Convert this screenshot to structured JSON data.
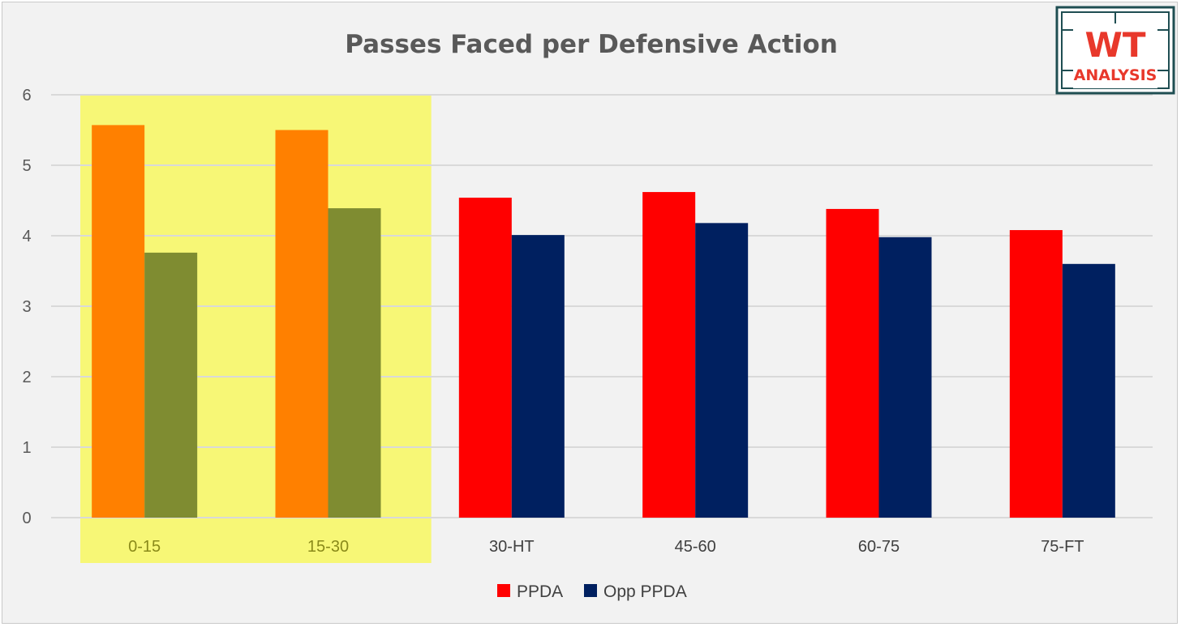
{
  "chart_data": {
    "type": "bar",
    "title": "Passes Faced per Defensive Action",
    "xlabel": "",
    "ylabel": "",
    "ylim": [
      0,
      6
    ],
    "yticks": [
      "0",
      "1",
      "2",
      "3",
      "4",
      "5",
      "6"
    ],
    "grid": true,
    "legend_position": "bottom",
    "categories": [
      "0-15",
      "15-30",
      "30-HT",
      "45-60",
      "60-75",
      "75-FT"
    ],
    "highlighted_categories": [
      "0-15",
      "15-30"
    ],
    "highlight_color": "#f7f776",
    "series": [
      {
        "name": "PPDA",
        "values": [
          5.57,
          5.5,
          4.54,
          4.62,
          4.38,
          4.08
        ],
        "color": "#ff0000",
        "highlight_color": "#ff8000"
      },
      {
        "name": "Opp PPDA",
        "values": [
          3.76,
          4.39,
          4.01,
          4.18,
          3.98,
          3.6
        ],
        "color": "#002060",
        "highlight_color": "#7f8c31"
      }
    ]
  },
  "logo": {
    "top_text": "WT",
    "bottom_text": "ANALYSIS",
    "accent_color": "#e8382b",
    "border_color": "#1f4e52"
  }
}
